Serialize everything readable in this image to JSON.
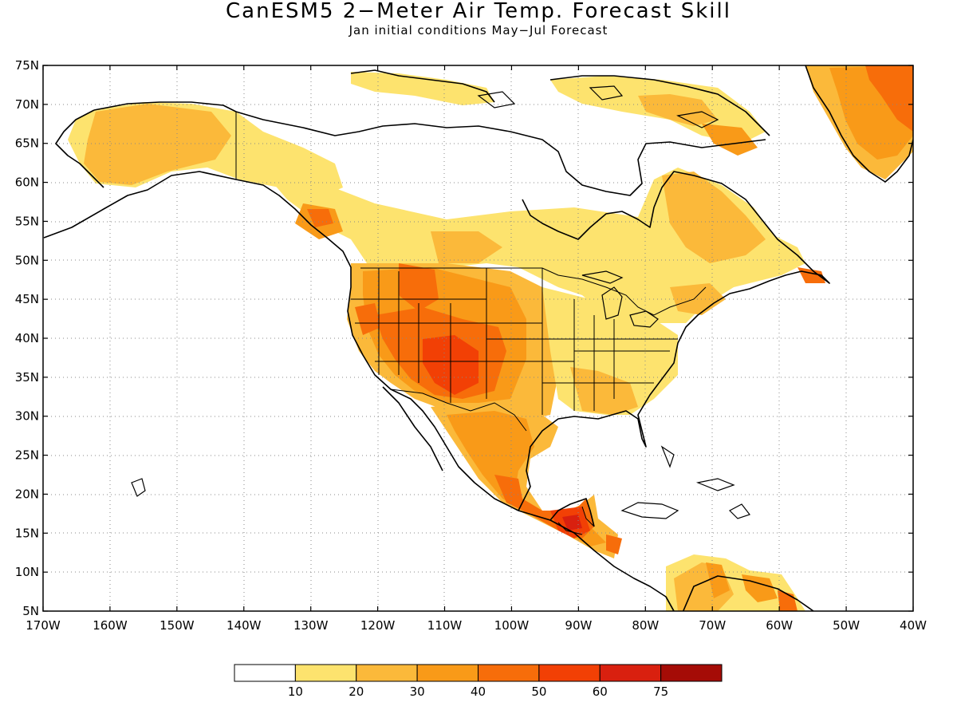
{
  "title": "CanESM5 2−Meter Air Temp. Forecast Skill",
  "subtitle": "Jan initial conditions   May−Jul Forecast",
  "map": {
    "lon_range": [
      -170,
      -40
    ],
    "lat_range": [
      5,
      75
    ],
    "lon_ticks": [
      "170W",
      "160W",
      "150W",
      "140W",
      "130W",
      "120W",
      "110W",
      "100W",
      "90W",
      "80W",
      "70W",
      "60W",
      "50W",
      "40W"
    ],
    "lat_ticks": [
      "75N",
      "70N",
      "65N",
      "60N",
      "55N",
      "50N",
      "45N",
      "40N",
      "35N",
      "30N",
      "25N",
      "20N",
      "15N",
      "10N",
      "5N"
    ],
    "grid": "dotted"
  },
  "colorbar": {
    "colors": [
      "#ffffff",
      "#fde36e",
      "#fbb93a",
      "#f99a18",
      "#f76d0a",
      "#f24005",
      "#d9200f",
      "#a50c06"
    ],
    "labels": [
      "10",
      "20",
      "30",
      "40",
      "50",
      "60",
      "75"
    ]
  }
}
